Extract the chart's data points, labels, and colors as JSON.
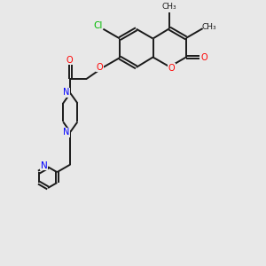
{
  "bg_color": "#e8e8e8",
  "bond_color": "#1a1a1a",
  "N_color": "#0000ff",
  "O_color": "#ff0000",
  "Cl_color": "#00bb00",
  "lw": 1.4,
  "dbo": 0.055,
  "xlim": [
    0,
    10
  ],
  "ylim": [
    0,
    10
  ],
  "figsize": [
    3.0,
    3.0
  ],
  "dpi": 100
}
